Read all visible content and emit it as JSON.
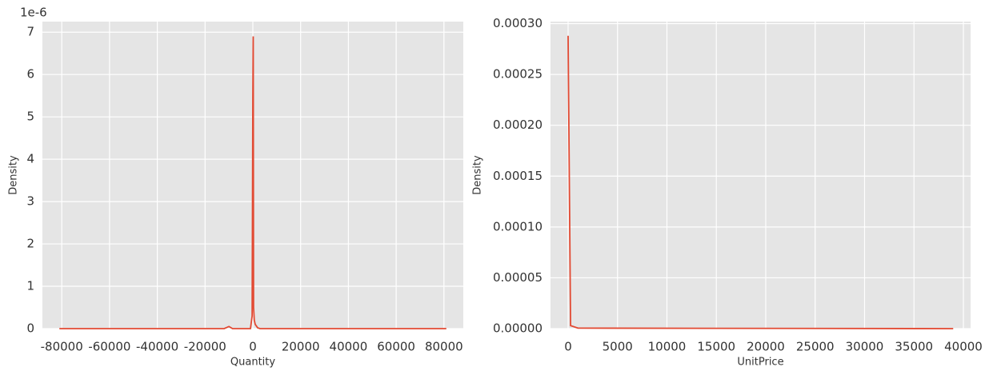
{
  "chart_data": [
    {
      "type": "line",
      "x_label": "Quantity",
      "y_label": "Density",
      "offset_label": "1e-6",
      "x": [
        -80995,
        -20000,
        -12000,
        -10000,
        -8500,
        -2000,
        -1000,
        -300,
        0,
        160,
        300,
        600,
        1000,
        2000,
        3000,
        20000,
        80995
      ],
      "series": [
        {
          "name": "Quantity",
          "color": "#e24a33",
          "values": [
            0,
            0,
            0,
            0.05,
            0,
            0,
            0,
            0.3,
            5.5,
            6.9,
            0.5,
            0.2,
            0.1,
            0.02,
            0,
            0,
            0
          ]
        }
      ],
      "xlim": [
        -88100,
        88100
      ],
      "ylim": [
        0,
        7.25
      ],
      "xticks": [
        -80000,
        -60000,
        -40000,
        -20000,
        0,
        20000,
        40000,
        60000,
        80000
      ],
      "yticks": [
        0,
        1,
        2,
        3,
        4,
        5,
        6,
        7
      ],
      "grid": true
    },
    {
      "type": "line",
      "x_label": "UnitPrice",
      "y_label": "Density",
      "x": [
        0,
        250,
        1000,
        38970
      ],
      "series": [
        {
          "name": "UnitPrice",
          "color": "#e24a33",
          "values": [
            0.000288,
            3e-06,
            5e-07,
            0
          ]
        }
      ],
      "xlim": [
        -1780,
        40730
      ],
      "ylim": [
        0,
        0.000302
      ],
      "xticks": [
        0,
        5000,
        10000,
        15000,
        20000,
        25000,
        30000,
        35000,
        40000
      ],
      "yticks": [
        {
          "value": 0,
          "label": "0.00000"
        },
        {
          "value": 5e-05,
          "label": "0.00005"
        },
        {
          "value": 0.0001,
          "label": "0.00010"
        },
        {
          "value": 0.00015,
          "label": "0.00015"
        },
        {
          "value": 0.0002,
          "label": "0.00020"
        },
        {
          "value": 0.00025,
          "label": "0.00025"
        },
        {
          "value": 0.0003,
          "label": "0.00030"
        }
      ],
      "grid": true
    }
  ]
}
